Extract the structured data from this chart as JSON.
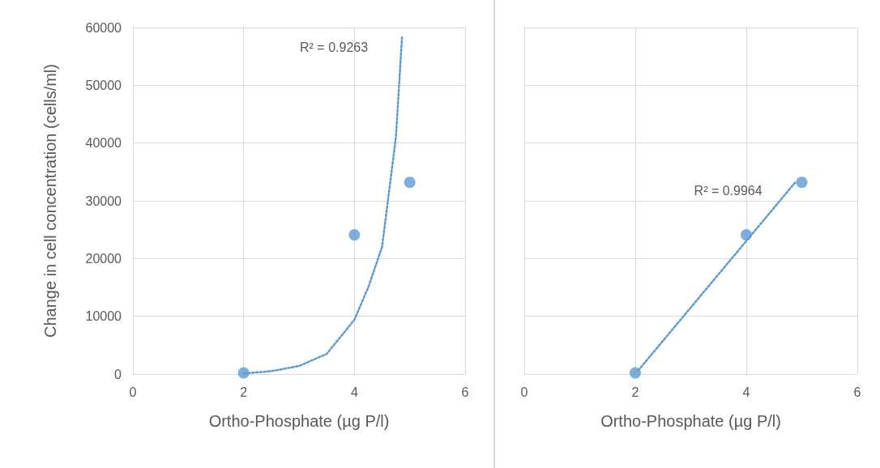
{
  "chart_data": [
    {
      "type": "scatter",
      "xlabel": "Ortho-Phosphate (µg P/l)",
      "ylabel": "Change in cell concentration (cells/ml)",
      "xlim": [
        0,
        6
      ],
      "xticks": [
        0,
        2,
        4,
        6
      ],
      "ylim": [
        0,
        60000
      ],
      "yticks": [
        0,
        10000,
        20000,
        30000,
        40000,
        50000,
        60000
      ],
      "grid": true,
      "marker": "circle",
      "annotations": [
        "R² = 0.9263"
      ],
      "series": [
        {
          "color": "#5b9bd5",
          "x": [
            2,
            4,
            5
          ],
          "values": [
            200,
            24100,
            33200
          ]
        },
        {
          "type": "line",
          "color": "#5b9bd5",
          "marker": "none",
          "line_style": "dotted",
          "x": [
            2,
            2.5,
            3,
            3.5,
            4,
            4.25,
            4.5,
            4.75,
            4.86
          ],
          "values": [
            100,
            500,
            1400,
            3500,
            9400,
            15000,
            22000,
            41000,
            58300
          ]
        }
      ]
    },
    {
      "type": "scatter",
      "xlabel": "Ortho-Phosphate (µg P/l)",
      "xlim": [
        0,
        6
      ],
      "xticks": [
        0,
        2,
        4,
        6
      ],
      "ylim": [
        0,
        60000
      ],
      "yticks": [
        0,
        10000,
        20000,
        30000,
        40000,
        50000,
        60000
      ],
      "grid": true,
      "marker": "circle",
      "tick_labels": "x",
      "annotations": [
        "R² = 0.9964"
      ],
      "series": [
        {
          "color": "#5b9bd5",
          "x": [
            2,
            4,
            5
          ],
          "values": [
            200,
            24100,
            33200
          ]
        },
        {
          "type": "line",
          "color": "#5b9bd5",
          "marker": "none",
          "line_style": "dotted",
          "x": [
            2.05,
            4.9
          ],
          "values": [
            600,
            33400
          ]
        }
      ]
    }
  ]
}
